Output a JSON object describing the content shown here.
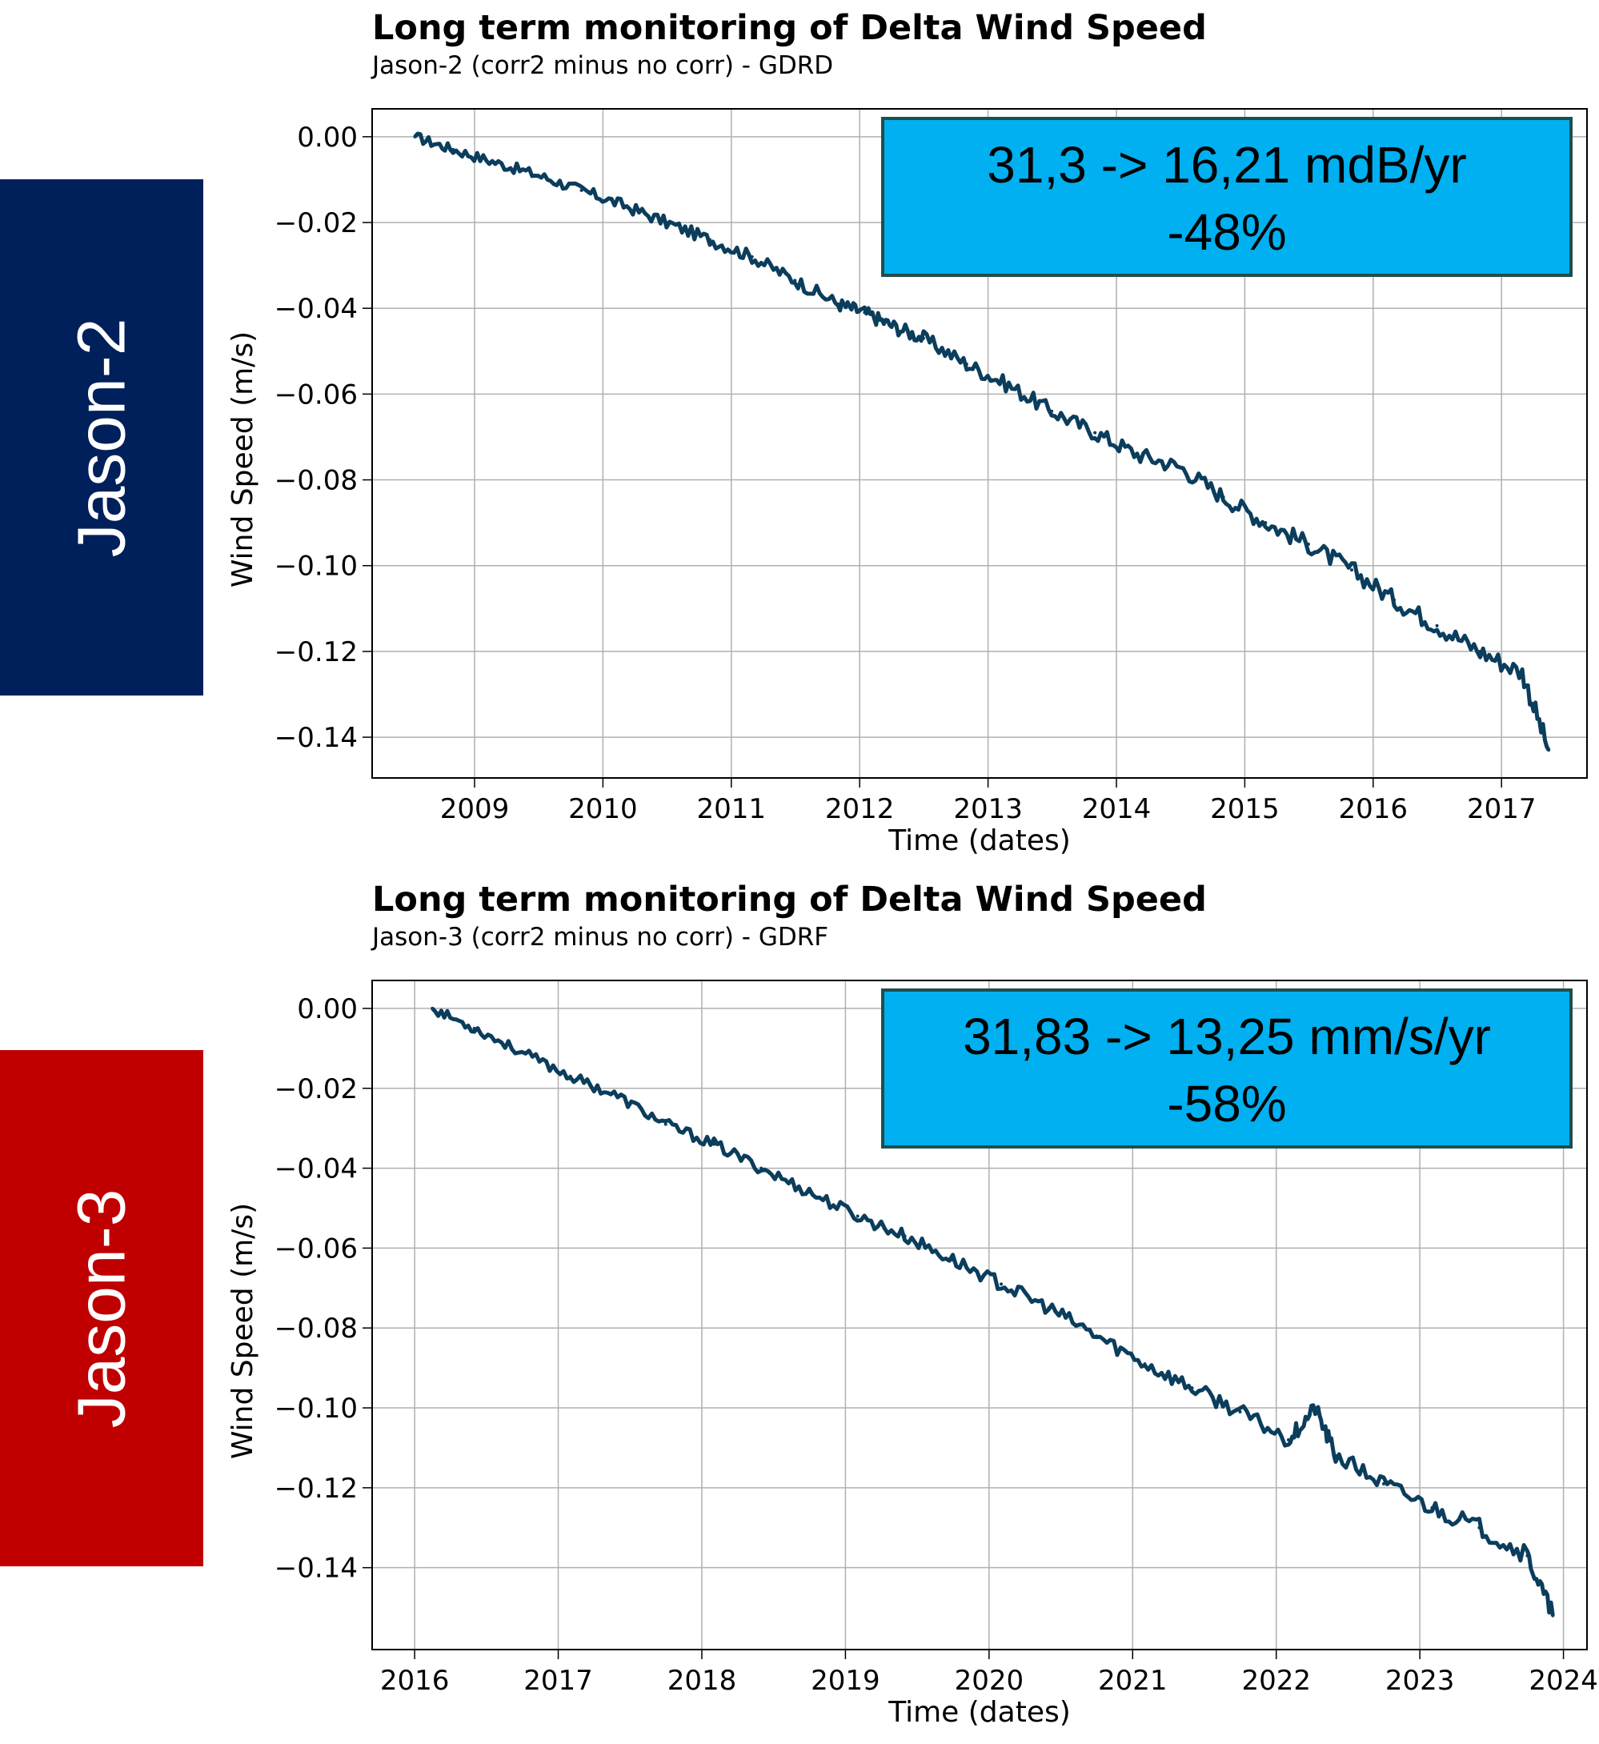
{
  "sidebar": [
    {
      "label": "Jason-2",
      "color": "#00205b"
    },
    {
      "label": "Jason-3",
      "color": "#c00000"
    }
  ],
  "colors": {
    "line": "#0b3d5c",
    "box_fill": "#00b0f0",
    "box_border": "#1f4e4e",
    "grid": "#b0b0b0"
  },
  "chart_data": [
    {
      "type": "line",
      "title": "Long term monitoring of Delta Wind Speed",
      "subtitle": "Jason-2 (corr2 minus no corr) - GDRD",
      "xlabel": "Time (dates)",
      "ylabel": "Wind Speed (m/s)",
      "x_ticks": [
        "2009",
        "2010",
        "2011",
        "2012",
        "2013",
        "2014",
        "2015",
        "2016",
        "2017"
      ],
      "y_ticks": [
        "0.00",
        "−0.02",
        "−0.04",
        "−0.06",
        "−0.08",
        "−0.10",
        "−0.12",
        "−0.14"
      ],
      "xlim": [
        "2008-03-15",
        "2017-09-01"
      ],
      "ylim": [
        -0.1495,
        0.0065
      ],
      "grid": true,
      "annotation": {
        "line1": "31,3 -> 16,21 mdB/yr",
        "line2": "-48%"
      },
      "x": [
        "2008-07-15",
        "2008-11-01",
        "2009-03-01",
        "2009-07-01",
        "2009-11-01",
        "2010-03-01",
        "2010-07-01",
        "2010-11-01",
        "2011-03-01",
        "2011-07-01",
        "2011-11-01",
        "2012-01-15",
        "2012-04-01",
        "2012-07-01",
        "2012-11-01",
        "2013-03-01",
        "2013-07-01",
        "2013-11-01",
        "2014-03-01",
        "2014-07-01",
        "2014-11-01",
        "2015-03-01",
        "2015-07-01",
        "2015-11-01",
        "2016-03-01",
        "2016-07-01",
        "2016-11-01",
        "2017-03-01",
        "2017-05-15"
      ],
      "values": [
        0.0,
        -0.003,
        -0.006,
        -0.009,
        -0.0125,
        -0.016,
        -0.02,
        -0.024,
        -0.028,
        -0.0335,
        -0.039,
        -0.041,
        -0.044,
        -0.047,
        -0.053,
        -0.058,
        -0.064,
        -0.069,
        -0.074,
        -0.077,
        -0.084,
        -0.09,
        -0.095,
        -0.101,
        -0.108,
        -0.114,
        -0.12,
        -0.125,
        -0.143
      ]
    },
    {
      "type": "line",
      "title": "Long term monitoring of Delta Wind Speed",
      "subtitle": "Jason-3 (corr2 minus no corr) - GDRF",
      "xlabel": "Time (dates)",
      "ylabel": "Wind Speed (m/s)",
      "x_ticks": [
        "2016",
        "2017",
        "2018",
        "2019",
        "2020",
        "2021",
        "2022",
        "2023",
        "2024"
      ],
      "y_ticks": [
        "0.00",
        "−0.02",
        "−0.04",
        "−0.06",
        "−0.08",
        "−0.10",
        "−0.12",
        "−0.14"
      ],
      "xlim": [
        "2015-09-15",
        "2024-03-01"
      ],
      "ylim": [
        -0.1605,
        0.007
      ],
      "grid": true,
      "annotation": {
        "line1": "31,83 -> 13,25 mm/s/yr",
        "line2": "-58%"
      },
      "x": [
        "2016-02-15",
        "2016-06-01",
        "2016-10-01",
        "2017-02-01",
        "2017-06-01",
        "2017-10-01",
        "2018-02-01",
        "2018-06-01",
        "2018-10-01",
        "2019-02-01",
        "2019-06-01",
        "2019-10-01",
        "2020-02-01",
        "2020-06-01",
        "2020-10-01",
        "2021-02-01",
        "2021-06-01",
        "2021-10-01",
        "2022-02-01",
        "2022-04-10",
        "2022-06-01",
        "2022-10-01",
        "2023-02-01",
        "2023-06-01",
        "2023-10-01",
        "2023-12-05"
      ],
      "values": [
        0.0,
        -0.005,
        -0.011,
        -0.017,
        -0.022,
        -0.029,
        -0.034,
        -0.04,
        -0.046,
        -0.052,
        -0.057,
        -0.063,
        -0.069,
        -0.075,
        -0.082,
        -0.089,
        -0.095,
        -0.101,
        -0.108,
        -0.1,
        -0.112,
        -0.119,
        -0.125,
        -0.13,
        -0.137,
        -0.152
      ]
    }
  ]
}
